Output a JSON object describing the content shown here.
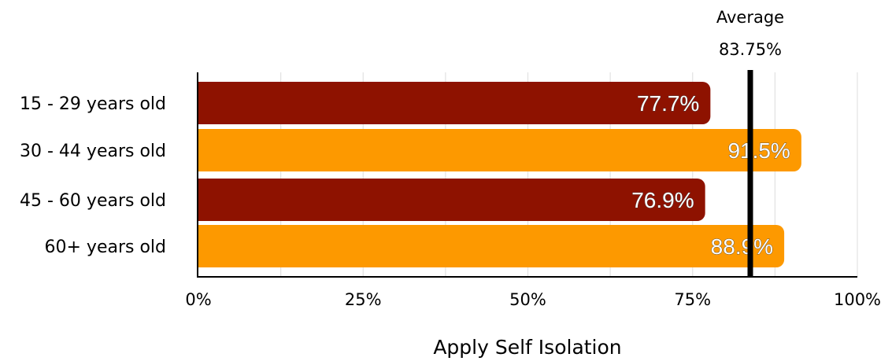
{
  "chart_data": {
    "type": "bar",
    "orientation": "horizontal",
    "categories": [
      "15 - 29 years old",
      "30 - 44 years old",
      "45 - 60 years old",
      "60+ years old"
    ],
    "values": [
      77.7,
      91.5,
      76.9,
      88.9
    ],
    "value_labels": [
      "77.7%",
      "91.5%",
      "76.9%",
      "88.9%"
    ],
    "bar_colors": [
      "#8e1200",
      "#fd9900",
      "#8e1200",
      "#fd9900"
    ],
    "xlabel": "Apply Self Isolation",
    "xlim": [
      0,
      100
    ],
    "x_ticks": [
      0,
      25,
      50,
      75,
      100
    ],
    "x_tick_labels": [
      "0%",
      "25%",
      "50%",
      "75%",
      "100%"
    ],
    "grid": true,
    "reference_line": {
      "value": 83.75,
      "label": "Average",
      "value_label": "83.75%",
      "color": "#000000"
    }
  }
}
